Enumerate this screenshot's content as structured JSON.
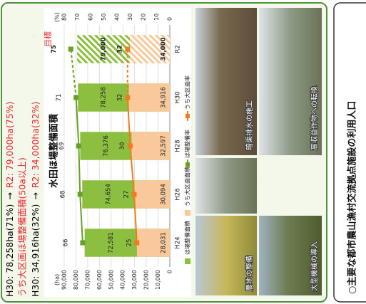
{
  "summary": [
    {
      "current": "H30: 78,258ha(71%)",
      "arrow": "→",
      "target": "R2: 79,000ha(75%)"
    },
    {
      "text": "うち大区画ほ場整備面積(50a以上)"
    },
    {
      "current": "H30: 34,916ha(32%)",
      "arrow": "→",
      "target": "R2: 34,000ha(32%)"
    }
  ],
  "chart_data": {
    "type": "bar",
    "title": "水田ほ場整備面積",
    "categories": [
      "H24",
      "H26",
      "H28",
      "H30",
      "R2"
    ],
    "series": [
      {
        "name": "ほ場整備面積",
        "color": "#8cbf3f",
        "values": [
          72581,
          74654,
          76376,
          78258,
          79000
        ],
        "value_labels": [
          "72,581",
          "74,654",
          "76,376",
          "78,258",
          "79,000"
        ]
      },
      {
        "name": "うち大区画面積",
        "color": "#f9c89b",
        "values": [
          28031,
          30094,
          32597,
          34916,
          34000
        ],
        "value_labels": [
          "28,031",
          "30,094",
          "32,597",
          "34,916",
          "34,000"
        ]
      },
      {
        "name": "ほ場整備率",
        "type": "line",
        "axis": "y2",
        "color": "#6a9e2a",
        "values": [
          66,
          68,
          69,
          71,
          75
        ]
      },
      {
        "name": "うち大区画率",
        "type": "line",
        "axis": "y2",
        "color": "#ee7d1f",
        "values": [
          25,
          27,
          30,
          32,
          32
        ]
      }
    ],
    "y_label": "(ha)",
    "y2_label": "(%)",
    "annotation": "目標",
    "ylim": [
      0,
      90000
    ],
    "yticks": [
      0,
      {
        "value": 10000,
        "label": "10,000"
      },
      {
        "value": 20000,
        "label": "20,000"
      },
      {
        "value": 30000,
        "label": "30,000"
      },
      {
        "value": 40000,
        "label": "40,000"
      },
      {
        "value": 50000,
        "label": "50,000"
      },
      {
        "value": 60000,
        "label": "60,000"
      },
      {
        "value": 70000,
        "label": "70,000"
      },
      {
        "value": 80000,
        "label": "80,000"
      },
      {
        "value": 90000,
        "label": "90,000"
      }
    ],
    "y2lim": [
      0,
      80
    ],
    "y2ticks": [
      0,
      10,
      20,
      30,
      40,
      50,
      60,
      70,
      80
    ],
    "grid": true
  },
  "photos": [
    "農地の整備",
    "大型機械の導入",
    "暗渠排水の施工",
    "高収益作物への転換"
  ],
  "next_section": {
    "title": "○主要な都市農山漁村交流拠点施設の利用人口"
  }
}
